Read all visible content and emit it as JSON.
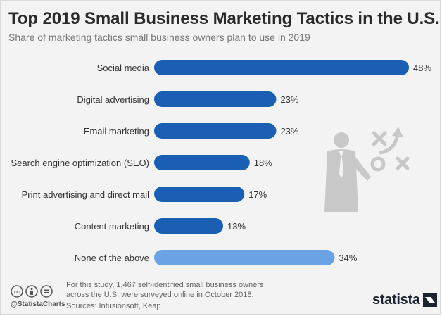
{
  "header": {
    "title": "Top 2019 Small Business Marketing Tactics in the U.S.",
    "subtitle": "Share of marketing tactics small business owners plan to use in 2019"
  },
  "chart_data": {
    "type": "bar",
    "orientation": "horizontal",
    "categories": [
      "Social media",
      "Digital advertising",
      "Email marketing",
      "Search engine optimization (SEO)",
      "Print advertising and direct mail",
      "Content marketing",
      "None of the above"
    ],
    "values": [
      48,
      23,
      23,
      18,
      17,
      13,
      34
    ],
    "value_labels": [
      "48%",
      "23%",
      "23%",
      "18%",
      "17%",
      "13%",
      "34%"
    ],
    "unit": "%",
    "xlim": [
      0,
      48
    ],
    "grid": false,
    "legend": "none",
    "colors": [
      "#1a5fb4",
      "#1a5fb4",
      "#1a5fb4",
      "#1a5fb4",
      "#1a5fb4",
      "#1a5fb4",
      "#6aa2e3"
    ]
  },
  "footer": {
    "note_line1": "For this study, 1,467 self-identified small business owners",
    "note_line2": "across the U.S. were surveyed online in October 2018.",
    "sources": "Sources: Infusionsoft, Keap",
    "handle": "@StatistaCharts",
    "brand": "statista",
    "license_icons": [
      "cc-icon",
      "attribution-icon",
      "no-derivatives-icon"
    ]
  },
  "illustration": {
    "icon": "businessman-strategy-icon",
    "color": "#c8c8c8"
  }
}
